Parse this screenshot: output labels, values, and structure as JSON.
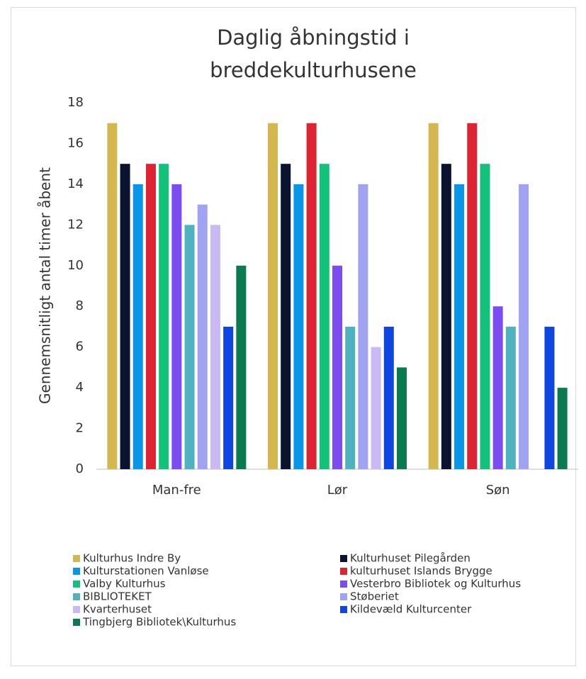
{
  "chart_data": {
    "type": "bar",
    "title": "Daglig åbningstid i breddekulturhusene",
    "y_label": "Gennemsnitligt antal timer åbent",
    "categories": [
      "Man-fre",
      "Lør",
      "Søn"
    ],
    "series": [
      {
        "name": "Kulturhus Indre By",
        "color": "#d4b84f",
        "values": [
          17,
          17,
          17
        ]
      },
      {
        "name": "Kulturhuset Pilegården",
        "color": "#0a1330",
        "values": [
          15,
          15,
          15
        ]
      },
      {
        "name": "Kulturstationen Vanløse",
        "color": "#0a96e8",
        "values": [
          14,
          14,
          14
        ]
      },
      {
        "name": "kulturhuset Islands Brygge",
        "color": "#dc2433",
        "values": [
          15,
          17,
          17
        ]
      },
      {
        "name": "Valby Kulturhus",
        "color": "#12c27a",
        "values": [
          15,
          15,
          15
        ]
      },
      {
        "name": "Vesterbro Bibliotek og Kulturhus",
        "color": "#7a4cf2",
        "values": [
          14,
          10,
          8
        ]
      },
      {
        "name": "BIBLIOTEKET",
        "color": "#4fb3bf",
        "values": [
          12,
          7,
          7
        ]
      },
      {
        "name": "Støberiet",
        "color": "#a0a3f2",
        "values": [
          13,
          14,
          14
        ]
      },
      {
        "name": "Kvarterhuset",
        "color": "#c9b9f5",
        "values": [
          12,
          6,
          0
        ]
      },
      {
        "name": "Kildevæld Kulturcenter",
        "color": "#0f45e0",
        "values": [
          7,
          7,
          7
        ]
      },
      {
        "name": "Tingbjerg Bibliotek\\Kulturhus",
        "color": "#0a7a50",
        "values": [
          10,
          5,
          4
        ]
      }
    ],
    "ylim": [
      0,
      18
    ],
    "yticks": [
      0,
      2,
      4,
      6,
      8,
      10,
      12,
      14,
      16,
      18
    ],
    "grid": false,
    "legend": "bottom"
  }
}
